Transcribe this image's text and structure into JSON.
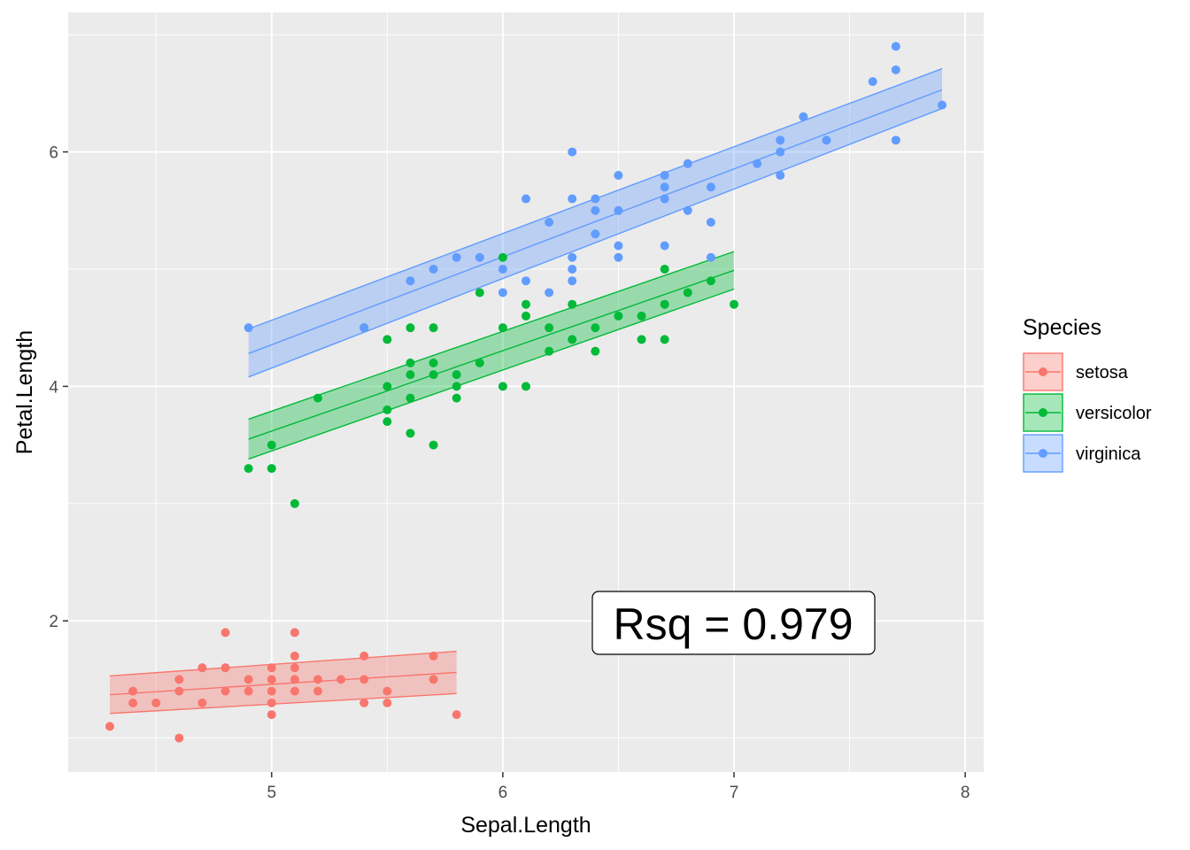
{
  "chart_data": {
    "type": "scatter",
    "xlabel": "Sepal.Length",
    "ylabel": "Petal.Length",
    "xlim": [
      4.12,
      8.08
    ],
    "ylim": [
      0.71,
      7.19
    ],
    "x_ticks": [
      "5",
      "6",
      "7",
      "8"
    ],
    "y_ticks": [
      "2",
      "4",
      "6"
    ],
    "grid": true,
    "legend": {
      "title": "Species",
      "position": "right",
      "entries": [
        "setosa",
        "versicolor",
        "virginica"
      ]
    },
    "annotation": {
      "text": "Rsq = 0.979",
      "x": 6.4,
      "y": 2.0
    },
    "series": [
      {
        "name": "setosa",
        "color": "#F8766D",
        "points": [
          [
            4.3,
            1.1
          ],
          [
            4.4,
            1.4
          ],
          [
            4.4,
            1.3
          ],
          [
            4.5,
            1.3
          ],
          [
            4.6,
            1.0
          ],
          [
            4.6,
            1.5
          ],
          [
            4.6,
            1.4
          ],
          [
            4.7,
            1.3
          ],
          [
            4.7,
            1.6
          ],
          [
            4.8,
            1.4
          ],
          [
            4.8,
            1.6
          ],
          [
            4.8,
            1.9
          ],
          [
            4.9,
            1.4
          ],
          [
            4.9,
            1.5
          ],
          [
            5.0,
            1.2
          ],
          [
            5.0,
            1.3
          ],
          [
            5.0,
            1.4
          ],
          [
            5.0,
            1.5
          ],
          [
            5.0,
            1.6
          ],
          [
            5.1,
            1.4
          ],
          [
            5.1,
            1.5
          ],
          [
            5.1,
            1.7
          ],
          [
            5.1,
            1.6
          ],
          [
            5.1,
            1.9
          ],
          [
            5.2,
            1.5
          ],
          [
            5.2,
            1.4
          ],
          [
            5.3,
            1.5
          ],
          [
            5.4,
            1.3
          ],
          [
            5.4,
            1.5
          ],
          [
            5.4,
            1.7
          ],
          [
            5.5,
            1.3
          ],
          [
            5.5,
            1.4
          ],
          [
            5.7,
            1.5
          ],
          [
            5.7,
            1.7
          ],
          [
            5.8,
            1.2
          ]
        ],
        "fit": {
          "x": [
            4.3,
            5.8
          ],
          "y": [
            1.37,
            1.56
          ]
        },
        "band": {
          "lower": [
            1.21,
            1.38
          ],
          "upper": [
            1.53,
            1.74
          ]
        }
      },
      {
        "name": "versicolor",
        "color": "#00BA38",
        "points": [
          [
            4.9,
            3.3
          ],
          [
            5.0,
            3.3
          ],
          [
            5.0,
            3.5
          ],
          [
            5.1,
            3.0
          ],
          [
            5.2,
            3.9
          ],
          [
            5.4,
            4.5
          ],
          [
            5.5,
            3.7
          ],
          [
            5.5,
            3.8
          ],
          [
            5.5,
            4.0
          ],
          [
            5.5,
            4.4
          ],
          [
            5.6,
            3.6
          ],
          [
            5.6,
            3.9
          ],
          [
            5.6,
            4.1
          ],
          [
            5.6,
            4.2
          ],
          [
            5.6,
            4.5
          ],
          [
            5.7,
            3.5
          ],
          [
            5.7,
            4.1
          ],
          [
            5.7,
            4.2
          ],
          [
            5.7,
            4.5
          ],
          [
            5.8,
            3.9
          ],
          [
            5.8,
            4.0
          ],
          [
            5.8,
            4.1
          ],
          [
            5.9,
            4.2
          ],
          [
            5.9,
            4.8
          ],
          [
            6.0,
            4.0
          ],
          [
            6.0,
            4.5
          ],
          [
            6.0,
            5.1
          ],
          [
            6.1,
            4.0
          ],
          [
            6.1,
            4.6
          ],
          [
            6.1,
            4.7
          ],
          [
            6.2,
            4.3
          ],
          [
            6.2,
            4.5
          ],
          [
            6.3,
            4.4
          ],
          [
            6.3,
            4.7
          ],
          [
            6.4,
            4.3
          ],
          [
            6.4,
            4.5
          ],
          [
            6.5,
            4.6
          ],
          [
            6.6,
            4.4
          ],
          [
            6.6,
            4.6
          ],
          [
            6.7,
            4.4
          ],
          [
            6.7,
            4.7
          ],
          [
            6.7,
            5.0
          ],
          [
            6.8,
            4.8
          ],
          [
            6.9,
            4.9
          ],
          [
            7.0,
            4.7
          ]
        ],
        "fit": {
          "x": [
            4.9,
            7.0
          ],
          "y": [
            3.55,
            4.99
          ]
        },
        "band": {
          "lower": [
            3.38,
            4.83
          ],
          "upper": [
            3.72,
            5.15
          ]
        }
      },
      {
        "name": "virginica",
        "color": "#619CFF",
        "points": [
          [
            4.9,
            4.5
          ],
          [
            5.4,
            4.5
          ],
          [
            5.6,
            4.9
          ],
          [
            5.7,
            5.0
          ],
          [
            5.8,
            5.1
          ],
          [
            5.9,
            5.1
          ],
          [
            6.0,
            5.0
          ],
          [
            6.0,
            4.8
          ],
          [
            6.1,
            5.6
          ],
          [
            6.1,
            4.9
          ],
          [
            6.2,
            5.4
          ],
          [
            6.2,
            4.8
          ],
          [
            6.3,
            6.0
          ],
          [
            6.3,
            5.6
          ],
          [
            6.3,
            5.1
          ],
          [
            6.3,
            5.0
          ],
          [
            6.3,
            4.9
          ],
          [
            6.4,
            5.6
          ],
          [
            6.4,
            5.5
          ],
          [
            6.4,
            5.3
          ],
          [
            6.5,
            5.8
          ],
          [
            6.5,
            5.5
          ],
          [
            6.5,
            5.2
          ],
          [
            6.5,
            5.1
          ],
          [
            6.7,
            5.8
          ],
          [
            6.7,
            5.7
          ],
          [
            6.7,
            5.6
          ],
          [
            6.7,
            5.2
          ],
          [
            6.8,
            5.9
          ],
          [
            6.8,
            5.5
          ],
          [
            6.9,
            5.7
          ],
          [
            6.9,
            5.4
          ],
          [
            6.9,
            5.1
          ],
          [
            7.1,
            5.9
          ],
          [
            7.2,
            6.1
          ],
          [
            7.2,
            6.0
          ],
          [
            7.2,
            5.8
          ],
          [
            7.3,
            6.3
          ],
          [
            7.4,
            6.1
          ],
          [
            7.6,
            6.6
          ],
          [
            7.7,
            6.9
          ],
          [
            7.7,
            6.7
          ],
          [
            7.7,
            6.1
          ],
          [
            7.9,
            6.4
          ]
        ],
        "fit": {
          "x": [
            4.9,
            7.9
          ],
          "y": [
            4.28,
            6.53
          ]
        },
        "band": {
          "lower": [
            4.08,
            6.37
          ],
          "upper": [
            4.49,
            6.71
          ]
        }
      }
    ]
  }
}
